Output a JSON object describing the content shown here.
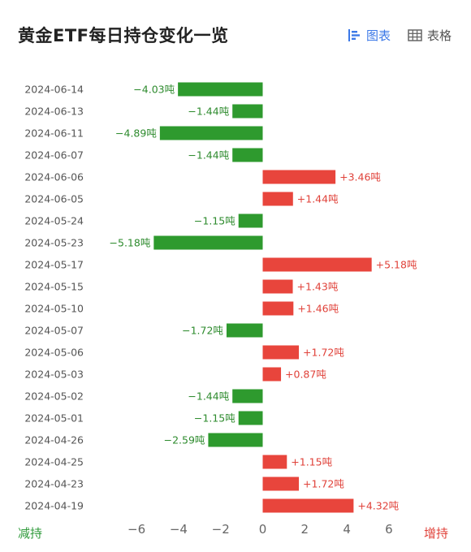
{
  "header": {
    "title": "黄金ETF每日持仓变化一览",
    "tab_chart_label": "图表",
    "tab_table_label": "表格"
  },
  "axis": {
    "left_label": "减持",
    "right_label": "增持"
  },
  "colors": {
    "positive": "#e8453c",
    "negative": "#2e9a2e",
    "positive_text": "#e0423a",
    "negative_text": "#2e8b2e",
    "accent": "#3b78e7"
  },
  "chart_data": {
    "type": "bar",
    "orientation": "horizontal",
    "unit": "吨",
    "categories": [
      "2024-06-14",
      "2024-06-13",
      "2024-06-11",
      "2024-06-07",
      "2024-06-06",
      "2024-06-05",
      "2024-05-24",
      "2024-05-23",
      "2024-05-17",
      "2024-05-15",
      "2024-05-10",
      "2024-05-07",
      "2024-05-06",
      "2024-05-03",
      "2024-05-02",
      "2024-05-01",
      "2024-04-26",
      "2024-04-25",
      "2024-04-23",
      "2024-04-19"
    ],
    "values": [
      -4.03,
      -1.44,
      -4.89,
      -1.44,
      3.46,
      1.44,
      -1.15,
      -5.18,
      5.18,
      1.43,
      1.46,
      -1.72,
      1.72,
      0.87,
      -1.44,
      -1.15,
      -2.59,
      1.15,
      1.72,
      4.32
    ],
    "labels": [
      "−4.03吨",
      "−1.44吨",
      "−4.89吨",
      "−1.44吨",
      "+3.46吨",
      "+1.44吨",
      "−1.15吨",
      "−5.18吨",
      "+5.18吨",
      "+1.43吨",
      "+1.46吨",
      "−1.72吨",
      "+1.72吨",
      "+0.87吨",
      "−1.44吨",
      "−1.15吨",
      "−2.59吨",
      "+1.15吨",
      "+1.72吨",
      "+4.32吨"
    ],
    "xticks": [
      -6,
      -4,
      -2,
      0,
      2,
      4,
      6
    ],
    "xtick_labels": [
      "−6",
      "−4",
      "−2",
      "0",
      "2",
      "4",
      "6"
    ],
    "xlim": [
      -7.1,
      8.5
    ],
    "grid": false
  }
}
